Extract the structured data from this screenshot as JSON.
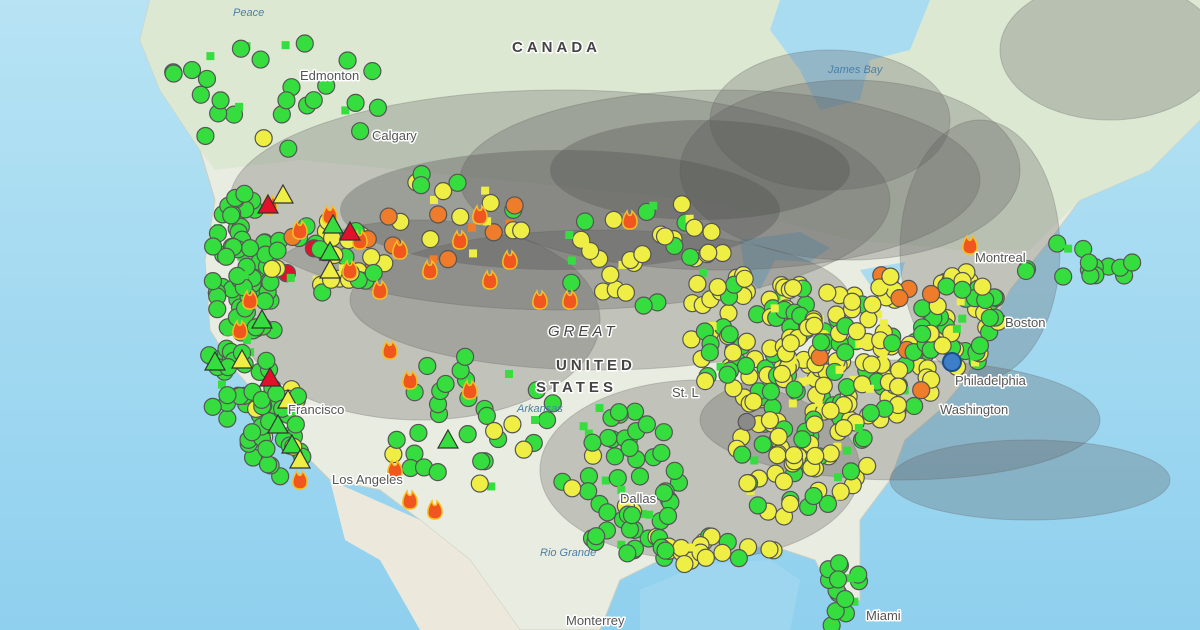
{
  "map": {
    "labels": {
      "canada": "CANADA",
      "edmonton": "Edmonton",
      "calgary": "Calgary",
      "peace": "Peace",
      "james_bay": "James Bay",
      "great_plains": "GREAT",
      "united": "UNITED",
      "states": "STATES",
      "st_louis": "St. L",
      "arkansas": "Arkansas",
      "montreal": "Montreal",
      "boston": "Boston",
      "philadelphia": "Philadelphia",
      "washington": "Washington",
      "san_francisco": "Francisco",
      "los_angeles": "Los Angeles",
      "dallas": "Dallas",
      "rio_grande": "Rio Grande",
      "monterrey": "Monterrey",
      "miami": "Miami"
    }
  }
}
